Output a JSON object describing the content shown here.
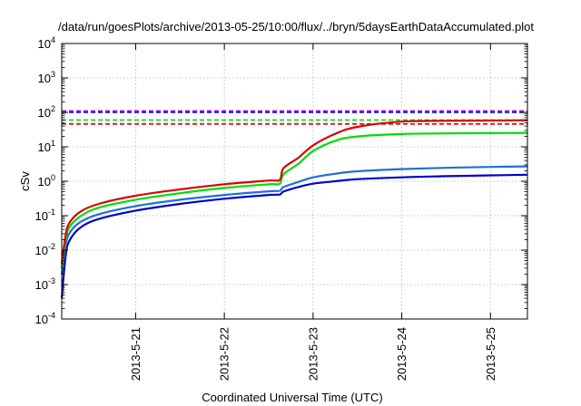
{
  "chart_data": {
    "type": "line",
    "title": "/data/run/goesPlots/archive/2013-05-25/10:00/flux/../bryn/5daysEarthDataAccumulated.plot",
    "xlabel": "Coordinated Universal Time (UTC)",
    "ylabel": "cSv",
    "yscale": "log",
    "ylim": [
      0.0001,
      10000
    ],
    "xlim": [
      "2013-05-20 04:00",
      "2013-05-25 10:00"
    ],
    "grid": true,
    "y_ticks": [
      {
        "base": "10",
        "exp": "-4"
      },
      {
        "base": "10",
        "exp": "-3"
      },
      {
        "base": "10",
        "exp": "-2"
      },
      {
        "base": "10",
        "exp": "-1"
      },
      {
        "base": "10",
        "exp": "0"
      },
      {
        "base": "10",
        "exp": "1"
      },
      {
        "base": "10",
        "exp": "2"
      },
      {
        "base": "10",
        "exp": "3"
      },
      {
        "base": "10",
        "exp": "4"
      }
    ],
    "x_ticks": [
      "2013-5-21",
      "2013-5-22",
      "2013-5-23",
      "2013-5-24",
      "2013-5-25"
    ],
    "x_tick_dates": [
      "2013-05-21",
      "2013-05-22",
      "2013-05-23",
      "2013-05-24",
      "2013-05-25"
    ],
    "series": [
      {
        "color": "#dd0000",
        "x": [
          "2013-05-20 04:00",
          "2013-05-20 05:00",
          "2013-05-20 06:00",
          "2013-05-20 09:00",
          "2013-05-20 14:00",
          "2013-05-21 00:00",
          "2013-05-21 12:00",
          "2013-05-22 00:00",
          "2013-05-22 12:00",
          "2013-05-22 15:00",
          "2013-05-22 16:00",
          "2013-05-22 20:00",
          "2013-05-23 00:00",
          "2013-05-23 06:00",
          "2013-05-23 12:00",
          "2013-05-24 00:00",
          "2013-05-24 12:00",
          "2013-05-25 00:00",
          "2013-05-25 10:00"
        ],
        "y": [
          0.004,
          0.025,
          0.06,
          0.13,
          0.22,
          0.38,
          0.58,
          0.82,
          1.05,
          1.1,
          2.4,
          4.8,
          11,
          24,
          38,
          54,
          57,
          58,
          59
        ]
      },
      {
        "color": "#00dd00",
        "x": [
          "2013-05-20 04:00",
          "2013-05-20 05:00",
          "2013-05-20 06:00",
          "2013-05-20 09:00",
          "2013-05-20 14:00",
          "2013-05-21 00:00",
          "2013-05-21 12:00",
          "2013-05-22 00:00",
          "2013-05-22 12:00",
          "2013-05-22 15:00",
          "2013-05-22 16:00",
          "2013-05-22 20:00",
          "2013-05-23 00:00",
          "2013-05-23 06:00",
          "2013-05-23 12:00",
          "2013-05-24 00:00",
          "2013-05-24 12:00",
          "2013-05-25 00:00",
          "2013-05-25 10:00"
        ],
        "y": [
          0.003,
          0.018,
          0.045,
          0.095,
          0.17,
          0.29,
          0.45,
          0.64,
          0.82,
          0.85,
          1.6,
          3.2,
          7.5,
          15,
          20,
          23.5,
          24.5,
          25,
          25.5
        ]
      },
      {
        "color": "#1e6fdd",
        "x": [
          "2013-05-20 04:00",
          "2013-05-20 05:00",
          "2013-05-20 06:00",
          "2013-05-20 09:00",
          "2013-05-20 14:00",
          "2013-05-21 00:00",
          "2013-05-21 12:00",
          "2013-05-22 00:00",
          "2013-05-22 12:00",
          "2013-05-22 15:00",
          "2013-05-22 16:00",
          "2013-05-22 20:00",
          "2013-05-23 00:00",
          "2013-05-23 06:00",
          "2013-05-23 12:00",
          "2013-05-24 00:00",
          "2013-05-24 12:00",
          "2013-05-25 00:00",
          "2013-05-25 10:00"
        ],
        "y": [
          0.002,
          0.012,
          0.03,
          0.065,
          0.11,
          0.19,
          0.29,
          0.4,
          0.51,
          0.53,
          0.68,
          0.95,
          1.3,
          1.65,
          1.95,
          2.25,
          2.45,
          2.6,
          2.7
        ]
      },
      {
        "color": "#0000cc",
        "x": [
          "2013-05-20 04:00",
          "2013-05-20 05:00",
          "2013-05-20 06:00",
          "2013-05-20 09:00",
          "2013-05-20 14:00",
          "2013-05-21 00:00",
          "2013-05-21 12:00",
          "2013-05-22 00:00",
          "2013-05-22 12:00",
          "2013-05-22 15:00",
          "2013-05-22 16:00",
          "2013-05-22 20:00",
          "2013-05-23 00:00",
          "2013-05-23 06:00",
          "2013-05-23 12:00",
          "2013-05-24 00:00",
          "2013-05-24 12:00",
          "2013-05-25 00:00",
          "2013-05-25 10:00"
        ],
        "y": [
          0.0004,
          0.006,
          0.018,
          0.045,
          0.08,
          0.14,
          0.22,
          0.31,
          0.4,
          0.41,
          0.5,
          0.68,
          0.85,
          1.0,
          1.15,
          1.3,
          1.4,
          1.48,
          1.55
        ]
      }
    ],
    "reference_lines": [
      {
        "value": 110,
        "color": "#aa00ff",
        "style": "dashed"
      },
      {
        "value": 100,
        "color": "#0000cc",
        "style": "dashed"
      },
      {
        "value": 60,
        "color": "#00dd00",
        "style": "dashed"
      },
      {
        "value": 46,
        "color": "#dd0000",
        "style": "dashed"
      }
    ]
  }
}
